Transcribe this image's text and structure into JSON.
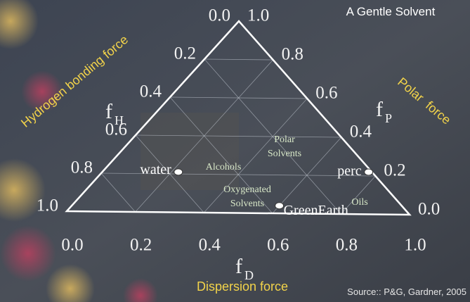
{
  "chart_data": {
    "type": "ternary",
    "title": "A Gentle  Solvent",
    "source": "Source:: P&G, Gardner, 2005",
    "axes": {
      "H": {
        "symbol": "f",
        "subscript": "H",
        "name": "Hydrogen bonding force",
        "ticks": [
          {
            "value": 0,
            "label": "0.0"
          },
          0.2,
          0.4,
          0.6,
          0.8,
          {
            "value": 1,
            "label": "1.0"
          }
        ]
      },
      "P": {
        "symbol": "f",
        "subscript": "P",
        "name": "Polar  force",
        "ticks": [
          {
            "value": 0,
            "label": "0.0"
          },
          0.2,
          0.4,
          0.6,
          0.8,
          {
            "value": 1,
            "label": "1.0"
          }
        ]
      },
      "D": {
        "symbol": "f",
        "subscript": "D",
        "name": "Dispersion force",
        "ticks": [
          {
            "value": 0,
            "label": "0.0"
          },
          0.2,
          0.4,
          0.6,
          0.8,
          {
            "value": 1,
            "label": "1.0"
          }
        ]
      }
    },
    "grid": true,
    "points": [
      {
        "name": "water",
        "fD": 0.22,
        "fP": 0.21,
        "fH": 0.57,
        "color": "#ffffff"
      },
      {
        "name": "perc",
        "fD": 0.77,
        "fP": 0.22,
        "fH": 0.01,
        "color": "#ffffff"
      },
      {
        "name": "GreenEarth",
        "fD": 0.6,
        "fP": 0.04,
        "fH": 0.36,
        "color": "#ffffff"
      }
    ],
    "annotations": [
      {
        "lines": [
          "Polar",
          "Solvents"
        ]
      },
      {
        "lines": [
          "Alcohols"
        ]
      },
      {
        "lines": [
          "Oxygenated",
          "Solvents"
        ]
      },
      {
        "lines": [
          "Oils"
        ]
      }
    ]
  }
}
